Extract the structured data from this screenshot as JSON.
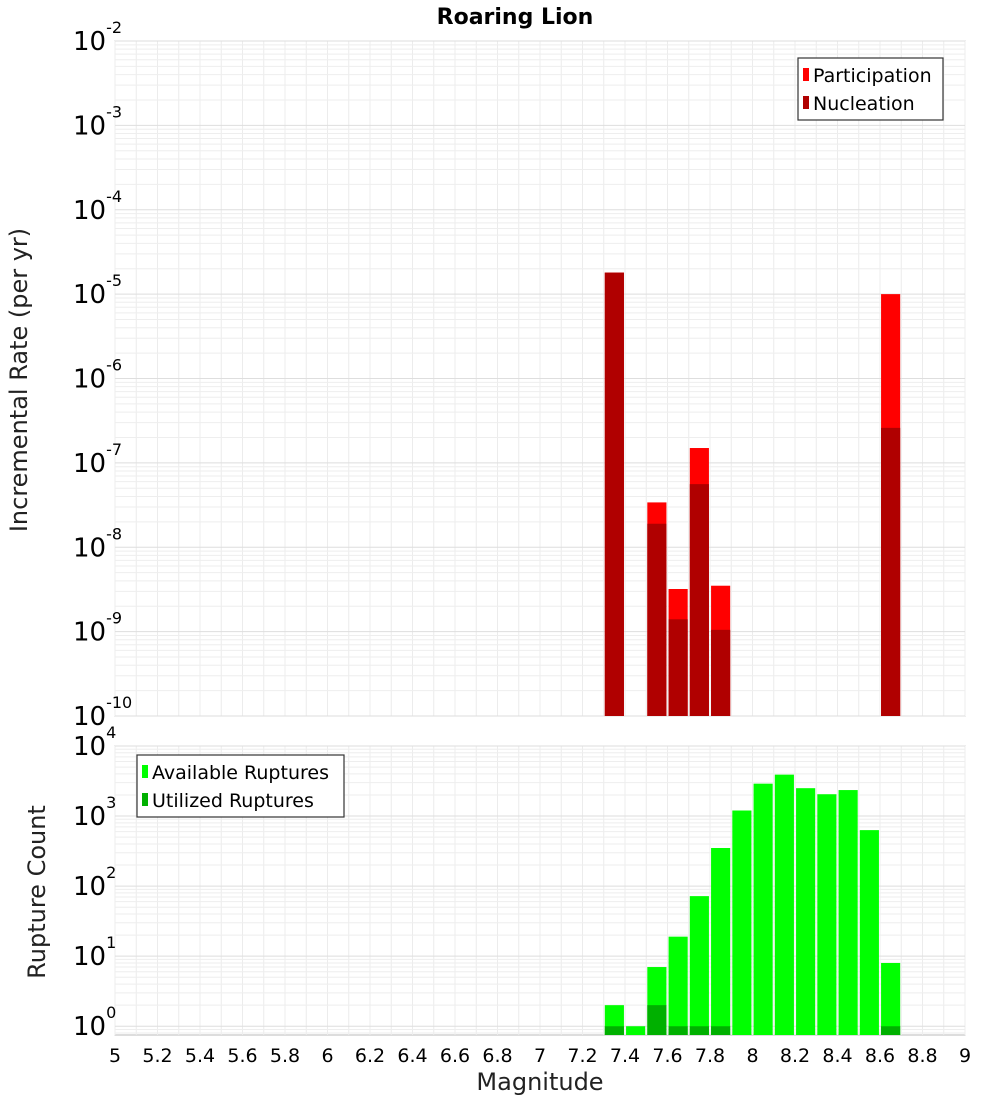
{
  "chart_data": [
    {
      "type": "bar",
      "title": "Roaring Lion",
      "ylabel": "Incremental Rate (per yr)",
      "xlabel": "",
      "yscale": "log",
      "xlim": [
        5,
        9
      ],
      "ylim": [
        1e-10,
        0.01
      ],
      "y_tick_exponents": [
        -10,
        -9,
        -8,
        -7,
        -6,
        -5,
        -4,
        -3,
        -2
      ],
      "grid": true,
      "legend_position": "top-right",
      "bar_width": 0.09,
      "series": [
        {
          "name": "Participation",
          "color": "#ff0000",
          "x": [
            7.35,
            7.55,
            7.65,
            7.75,
            7.85,
            8.65
          ],
          "values": [
            1.8e-05,
            3.4e-08,
            3.2e-09,
            1.5e-07,
            3.5e-09,
            1e-05
          ]
        },
        {
          "name": "Nucleation",
          "color": "#b00000",
          "x": [
            7.35,
            7.55,
            7.65,
            7.75,
            7.85,
            8.65
          ],
          "values": [
            1.8e-05,
            1.9e-08,
            1.4e-09,
            5.6e-08,
            1.05e-09,
            2.6e-07
          ]
        }
      ]
    },
    {
      "type": "bar",
      "title": "",
      "ylabel": "Rupture Count",
      "xlabel": "Magnitude",
      "yscale": "log",
      "xlim": [
        5,
        9
      ],
      "ylim": [
        0.75,
        10000
      ],
      "y_tick_exponents": [
        0,
        1,
        2,
        3,
        4
      ],
      "x_ticks": [
        "5",
        "5.2",
        "5.4",
        "5.6",
        "5.8",
        "6",
        "6.2",
        "6.4",
        "6.6",
        "6.8",
        "7",
        "7.2",
        "7.4",
        "7.6",
        "7.8",
        "8",
        "8.2",
        "8.4",
        "8.6",
        "8.8",
        "9"
      ],
      "grid": true,
      "legend_position": "top-left",
      "bar_width": 0.09,
      "series": [
        {
          "name": "Available Ruptures",
          "color": "#00ff00",
          "x": [
            7.35,
            7.45,
            7.55,
            7.65,
            7.75,
            7.85,
            7.95,
            8.05,
            8.15,
            8.25,
            8.35,
            8.45,
            8.55,
            8.65
          ],
          "values": [
            2,
            1,
            7,
            19,
            72,
            350,
            1200,
            2900,
            3900,
            2500,
            2050,
            2350,
            630,
            8
          ]
        },
        {
          "name": "Utilized Ruptures",
          "color": "#00b000",
          "x": [
            7.35,
            7.55,
            7.65,
            7.75,
            7.85,
            8.65
          ],
          "values": [
            1,
            2,
            1,
            1,
            1,
            1
          ]
        }
      ]
    }
  ]
}
